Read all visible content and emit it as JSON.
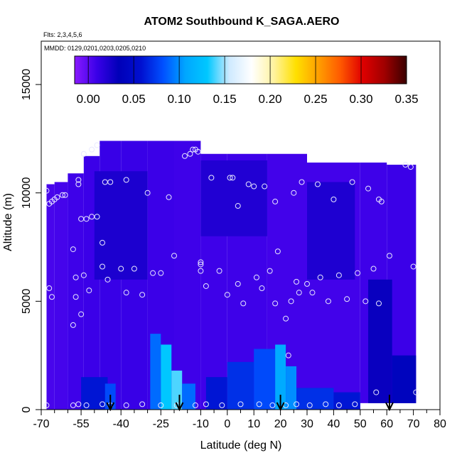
{
  "chart_data": {
    "type": "heatmap",
    "title": "ATOM2 Southbound K_SAGA.AERO",
    "subtitle_flights": "Flts: 2,3,4,5,6",
    "subtitle_dates": "MMDD: 0129,0201,0203,0205,0210",
    "xlabel": "Latitude (deg N)",
    "ylabel": "Altitude (m)",
    "xlim": [
      -70,
      80
    ],
    "ylim": [
      0,
      17000
    ],
    "x_ticks": [
      -70,
      -55,
      -40,
      -25,
      -10,
      0,
      10,
      20,
      30,
      40,
      50,
      60,
      70,
      80
    ],
    "x_minor_ticks": [
      -65,
      -60,
      -50,
      -45,
      -35,
      -30,
      -20,
      -15,
      -5,
      5,
      15,
      25,
      35,
      45,
      55,
      65,
      75
    ],
    "y_ticks": [
      0,
      5000,
      10000,
      15000
    ],
    "colorbar": {
      "min": -0.015,
      "max": 0.35,
      "ticks": [
        0.0,
        0.05,
        0.1,
        0.15,
        0.2,
        0.25,
        0.3,
        0.35
      ],
      "tick_labels": [
        "0.00",
        "0.05",
        "0.10",
        "0.15",
        "0.20",
        "0.25",
        "0.30",
        "0.35"
      ],
      "colors": [
        "#8a1aff",
        "#3a00e8",
        "#0000b8",
        "#0010d0",
        "#0050ff",
        "#00a6ff",
        "#00c8ff",
        "#cfeaff",
        "#ffffff",
        "#fff3a0",
        "#ffe000",
        "#ffa000",
        "#ff5a00",
        "#e00000",
        "#a00000",
        "#3a0000"
      ]
    },
    "cells": [
      {
        "x0": -68,
        "x1": -65,
        "z0": 0,
        "z1": 10400,
        "v": 0.005
      },
      {
        "x0": -65,
        "x1": -60,
        "z0": 0,
        "z1": 10500,
        "v": 0.006
      },
      {
        "x0": -60,
        "x1": -54,
        "z0": 0,
        "z1": 10900,
        "v": 0.008
      },
      {
        "x0": -54,
        "x1": -48,
        "z0": 0,
        "z1": 11700,
        "v": 0.009
      },
      {
        "x0": -48,
        "x1": -40,
        "z0": 0,
        "z1": 12400,
        "v": 0.01
      },
      {
        "x0": -40,
        "x1": -30,
        "z0": 0,
        "z1": 12400,
        "v": 0.01
      },
      {
        "x0": -30,
        "x1": -20,
        "z0": 0,
        "z1": 12400,
        "v": 0.009
      },
      {
        "x0": -20,
        "x1": -10,
        "z0": 0,
        "z1": 12400,
        "v": 0.008
      },
      {
        "x0": -10,
        "x1": 0,
        "z0": 0,
        "z1": 11800,
        "v": 0.008
      },
      {
        "x0": 0,
        "x1": 15,
        "z0": 0,
        "z1": 11800,
        "v": 0.008
      },
      {
        "x0": 15,
        "x1": 30,
        "z0": 0,
        "z1": 11800,
        "v": 0.007
      },
      {
        "x0": 30,
        "x1": 50,
        "z0": 0,
        "z1": 11400,
        "v": 0.007
      },
      {
        "x0": 50,
        "x1": 60,
        "z0": 300,
        "z1": 11400,
        "v": 0.008
      },
      {
        "x0": 60,
        "x1": 71,
        "z0": 300,
        "z1": 11300,
        "v": 0.009
      },
      {
        "x0": -50,
        "x1": -30,
        "z0": 6000,
        "z1": 11000,
        "v": 0.022
      },
      {
        "x0": -10,
        "x1": 15,
        "z0": 8000,
        "z1": 11500,
        "v": 0.02
      },
      {
        "x0": 30,
        "x1": 48,
        "z0": 6000,
        "z1": 10500,
        "v": 0.021
      },
      {
        "x0": -55,
        "x1": -45,
        "z0": 0,
        "z1": 1500,
        "v": 0.06
      },
      {
        "x0": -46,
        "x1": -42,
        "z0": 0,
        "z1": 1200,
        "v": 0.08
      },
      {
        "x0": -29,
        "x1": -25,
        "z0": 0,
        "z1": 3500,
        "v": 0.09
      },
      {
        "x0": -25,
        "x1": -21,
        "z0": 0,
        "z1": 3000,
        "v": 0.13
      },
      {
        "x0": -21,
        "x1": -17,
        "z0": 0,
        "z1": 1800,
        "v": 0.14
      },
      {
        "x0": -17,
        "x1": -12,
        "z0": 0,
        "z1": 1200,
        "v": 0.09
      },
      {
        "x0": -8,
        "x1": 0,
        "z0": 0,
        "z1": 1500,
        "v": 0.06
      },
      {
        "x0": 0,
        "x1": 10,
        "z0": 0,
        "z1": 2200,
        "v": 0.07
      },
      {
        "x0": 10,
        "x1": 18,
        "z0": 0,
        "z1": 2800,
        "v": 0.08
      },
      {
        "x0": 18,
        "x1": 22,
        "z0": 0,
        "z1": 3000,
        "v": 0.11
      },
      {
        "x0": 22,
        "x1": 26,
        "z0": 0,
        "z1": 2000,
        "v": 0.1
      },
      {
        "x0": 26,
        "x1": 40,
        "z0": 0,
        "z1": 1000,
        "v": 0.07
      },
      {
        "x0": 40,
        "x1": 50,
        "z0": 0,
        "z1": 800,
        "v": 0.06
      },
      {
        "x0": 53,
        "x1": 62,
        "z0": 300,
        "z1": 6000,
        "v": 0.03
      },
      {
        "x0": 62,
        "x1": 71,
        "z0": 300,
        "z1": 2500,
        "v": 0.04
      }
    ],
    "observations": [
      {
        "x": -68,
        "z": 10100
      },
      {
        "x": -67,
        "z": 9500
      },
      {
        "x": -66,
        "z": 9600
      },
      {
        "x": -65,
        "z": 9700
      },
      {
        "x": -64,
        "z": 9800
      },
      {
        "x": -62,
        "z": 9900
      },
      {
        "x": -61,
        "z": 9900
      },
      {
        "x": -56,
        "z": 10600
      },
      {
        "x": -56,
        "z": 10400
      },
      {
        "x": -55,
        "z": 8800
      },
      {
        "x": -53,
        "z": 8800
      },
      {
        "x": -51,
        "z": 8900
      },
      {
        "x": -49,
        "z": 8900
      },
      {
        "x": -47,
        "z": 7700
      },
      {
        "x": -46,
        "z": 10500
      },
      {
        "x": -44,
        "z": 10500
      },
      {
        "x": -38,
        "z": 10600
      },
      {
        "x": -30,
        "z": 10000
      },
      {
        "x": -22,
        "z": 9800
      },
      {
        "x": -54,
        "z": 11800
      },
      {
        "x": -51,
        "z": 12000
      },
      {
        "x": -49,
        "z": 12200
      },
      {
        "x": -16,
        "z": 11700
      },
      {
        "x": -14,
        "z": 11800
      },
      {
        "x": -13,
        "z": 12000
      },
      {
        "x": -12,
        "z": 12000
      },
      {
        "x": -11,
        "z": 11900
      },
      {
        "x": -6,
        "z": 10700
      },
      {
        "x": 1,
        "z": 10700
      },
      {
        "x": 2,
        "z": 10700
      },
      {
        "x": 8,
        "z": 10400
      },
      {
        "x": 10,
        "z": 10300
      },
      {
        "x": 14,
        "z": 10300
      },
      {
        "x": 4,
        "z": 9400
      },
      {
        "x": 18,
        "z": 9600
      },
      {
        "x": 25,
        "z": 10000
      },
      {
        "x": 28,
        "z": 10500
      },
      {
        "x": 34,
        "z": 10400
      },
      {
        "x": 40,
        "z": 9700
      },
      {
        "x": 47,
        "z": 10500
      },
      {
        "x": 53,
        "z": 10200
      },
      {
        "x": 57,
        "z": 9700
      },
      {
        "x": 58,
        "z": 9600
      },
      {
        "x": 67,
        "z": 11300
      },
      {
        "x": 69,
        "z": 11200
      },
      {
        "x": -67,
        "z": 5600
      },
      {
        "x": -66,
        "z": 5200
      },
      {
        "x": -58,
        "z": 7400
      },
      {
        "x": -57,
        "z": 6100
      },
      {
        "x": -57,
        "z": 5200
      },
      {
        "x": -55,
        "z": 4400
      },
      {
        "x": -58,
        "z": 3900
      },
      {
        "x": -54,
        "z": 6200
      },
      {
        "x": -52,
        "z": 5500
      },
      {
        "x": -47,
        "z": 6600
      },
      {
        "x": -45,
        "z": 6000
      },
      {
        "x": -40,
        "z": 6500
      },
      {
        "x": -38,
        "z": 5400
      },
      {
        "x": -35,
        "z": 6500
      },
      {
        "x": -32,
        "z": 5300
      },
      {
        "x": -28,
        "z": 6300
      },
      {
        "x": -25,
        "z": 6300
      },
      {
        "x": -20,
        "z": 7100
      },
      {
        "x": -10,
        "z": 6800
      },
      {
        "x": -10,
        "z": 6700
      },
      {
        "x": -10,
        "z": 6400
      },
      {
        "x": -8,
        "z": 5700
      },
      {
        "x": -3,
        "z": 6400
      },
      {
        "x": 0,
        "z": 5300
      },
      {
        "x": 4,
        "z": 5800
      },
      {
        "x": 6,
        "z": 4900
      },
      {
        "x": 11,
        "z": 6100
      },
      {
        "x": 13,
        "z": 5600
      },
      {
        "x": 16,
        "z": 6400
      },
      {
        "x": 18,
        "z": 4900
      },
      {
        "x": 19,
        "z": 7300
      },
      {
        "x": 22,
        "z": 4200
      },
      {
        "x": 24,
        "z": 5000
      },
      {
        "x": 26,
        "z": 5900
      },
      {
        "x": 27,
        "z": 5400
      },
      {
        "x": 30,
        "z": 5800
      },
      {
        "x": 32,
        "z": 5400
      },
      {
        "x": 35,
        "z": 6100
      },
      {
        "x": 38,
        "z": 5000
      },
      {
        "x": 42,
        "z": 6200
      },
      {
        "x": 45,
        "z": 5100
      },
      {
        "x": 49,
        "z": 6300
      },
      {
        "x": 52,
        "z": 5000
      },
      {
        "x": 55,
        "z": 6500
      },
      {
        "x": 57,
        "z": 4900
      },
      {
        "x": 61,
        "z": 7100
      },
      {
        "x": 70,
        "z": 6600
      },
      {
        "x": 23,
        "z": 2500
      },
      {
        "x": -68,
        "z": 200
      },
      {
        "x": -58,
        "z": 200
      },
      {
        "x": -56,
        "z": 250
      },
      {
        "x": -53,
        "z": 200
      },
      {
        "x": -47,
        "z": 250
      },
      {
        "x": -44,
        "z": 200
      },
      {
        "x": -38,
        "z": 200
      },
      {
        "x": -32,
        "z": 250
      },
      {
        "x": -25,
        "z": 200
      },
      {
        "x": -19,
        "z": 200
      },
      {
        "x": -12,
        "z": 200
      },
      {
        "x": -8,
        "z": 250
      },
      {
        "x": -2,
        "z": 200
      },
      {
        "x": 5,
        "z": 250
      },
      {
        "x": 12,
        "z": 250
      },
      {
        "x": 17,
        "z": 200
      },
      {
        "x": 22,
        "z": 200
      },
      {
        "x": 26,
        "z": 250
      },
      {
        "x": 31,
        "z": 200
      },
      {
        "x": 37,
        "z": 250
      },
      {
        "x": 42,
        "z": 200
      },
      {
        "x": 48,
        "z": 250
      },
      {
        "x": 56,
        "z": 800
      },
      {
        "x": 71,
        "z": 800
      }
    ],
    "arrows_x": [
      -44,
      -18,
      20,
      61
    ]
  }
}
